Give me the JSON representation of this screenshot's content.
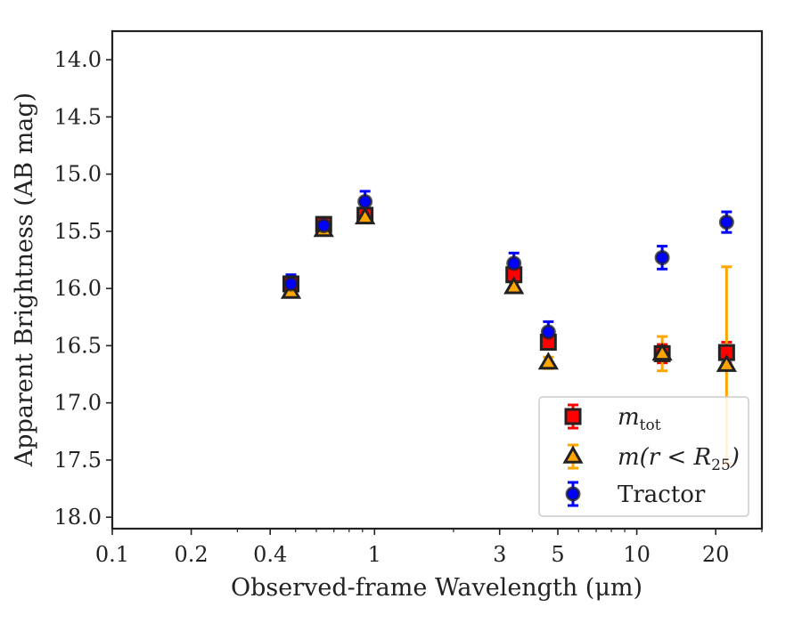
{
  "chart_data": {
    "type": "scatter",
    "xscale": "log",
    "xlim": [
      0.1,
      30
    ],
    "ylim": [
      18.1,
      13.75
    ],
    "y_inverted": true,
    "xlabel": "Observed-frame Wavelength (μm)",
    "ylabel": "Apparent Brightness (AB mag)",
    "xticks": [
      {
        "value": 0.1,
        "label": "0.1"
      },
      {
        "value": 0.2,
        "label": "0.2"
      },
      {
        "value": 0.4,
        "label": "0.4"
      },
      {
        "value": 1,
        "label": "1"
      },
      {
        "value": 3,
        "label": "3"
      },
      {
        "value": 5,
        "label": "5"
      },
      {
        "value": 10,
        "label": "10"
      },
      {
        "value": 20,
        "label": "20"
      }
    ],
    "yticks": [
      {
        "value": 14.0,
        "label": "14.0"
      },
      {
        "value": 14.5,
        "label": "14.5"
      },
      {
        "value": 15.0,
        "label": "15.0"
      },
      {
        "value": 15.5,
        "label": "15.5"
      },
      {
        "value": 16.0,
        "label": "16.0"
      },
      {
        "value": 16.5,
        "label": "16.5"
      },
      {
        "value": 17.0,
        "label": "17.0"
      },
      {
        "value": 17.5,
        "label": "17.5"
      },
      {
        "value": 18.0,
        "label": "18.0"
      }
    ],
    "grid": false,
    "legend_position": "lower-right",
    "series": [
      {
        "name": "m_tot",
        "legend_main": "m",
        "legend_sub": "tot",
        "marker": "square",
        "color": "#ff0000",
        "errcolor": "#ff0000",
        "x": [
          0.48,
          0.64,
          0.92,
          3.4,
          4.6,
          12.5,
          22.0
        ],
        "y": [
          15.96,
          15.44,
          15.36,
          15.88,
          16.47,
          16.57,
          16.56
        ],
        "err": [
          0.05,
          0.06,
          0.05,
          0.05,
          0.06,
          0.08,
          0.09
        ]
      },
      {
        "name": "m(r < R25)",
        "legend_main": "m(r < R",
        "legend_sub": "25",
        "legend_close": ")",
        "marker": "triangle",
        "color": "#ffa500",
        "errcolor": "#ffa500",
        "x": [
          0.48,
          0.64,
          0.92,
          3.4,
          4.6,
          12.5,
          22.0
        ],
        "y": [
          16.03,
          15.49,
          15.38,
          15.99,
          16.65,
          16.57,
          16.67
        ],
        "err": [
          0.03,
          0.03,
          0.03,
          0.04,
          0.05,
          0.15,
          0.86
        ]
      },
      {
        "name": "Tractor",
        "marker": "circle",
        "color": "#0000ff",
        "errcolor": "#0000ff",
        "x": [
          0.48,
          0.64,
          0.92,
          3.4,
          4.6,
          12.5,
          22.0
        ],
        "y": [
          15.96,
          15.45,
          15.24,
          15.78,
          16.38,
          15.73,
          15.42
        ],
        "err": [
          0.08,
          0.07,
          0.09,
          0.09,
          0.09,
          0.1,
          0.09
        ]
      }
    ]
  }
}
